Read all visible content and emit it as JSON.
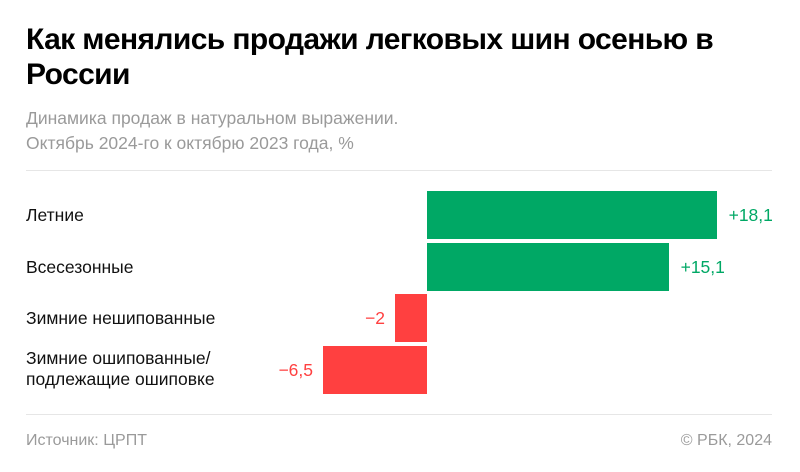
{
  "header": {
    "title": "Как менялись продажи легковых шин осенью в России",
    "subtitle_line1": "Динамика продаж в натуральном выражении.",
    "subtitle_line2": "Октябрь 2024-го к октябрю 2023 года, %"
  },
  "colors": {
    "positive": "#00a865",
    "negative": "#ff4040",
    "text": "#111111",
    "muted": "#9a9a9a"
  },
  "rows": [
    {
      "label_line1": "Летние",
      "label_line2": "",
      "value": 18.1,
      "value_label": "+18,1"
    },
    {
      "label_line1": "Всесезонные",
      "label_line2": "",
      "value": 15.1,
      "value_label": "+15,1"
    },
    {
      "label_line1": "Зимние нешипованные",
      "label_line2": "",
      "value": -2,
      "value_label": "−2"
    },
    {
      "label_line1": "Зимние ошипованные/",
      "label_line2": "подлежащие ошиповке",
      "value": -6.5,
      "value_label": "−6,5"
    }
  ],
  "footer": {
    "source": "Источник: ЦРПТ",
    "copyright": "© РБК, 2024"
  },
  "chart_data": {
    "type": "bar",
    "orientation": "horizontal",
    "title": "Как менялись продажи легковых шин осенью в России",
    "subtitle": "Динамика продаж в натуральном выражении. Октябрь 2024-го к октябрю 2023 года, %",
    "categories": [
      "Летние",
      "Всесезонные",
      "Зимние нешипованные",
      "Зимние ошипованные/подлежащие ошиповке"
    ],
    "values": [
      18.1,
      15.1,
      -2,
      -6.5
    ],
    "value_labels": [
      "+18,1",
      "+15,1",
      "−2",
      "−6,5"
    ],
    "xlabel": "",
    "ylabel": "",
    "unit": "%",
    "grid": false,
    "legend": "none",
    "source": "ЦРПТ"
  }
}
